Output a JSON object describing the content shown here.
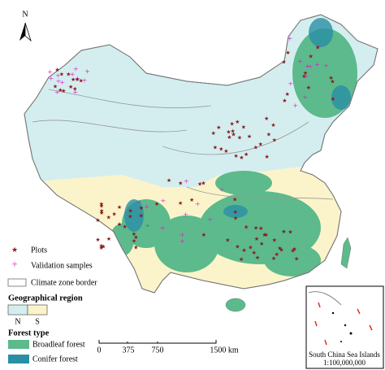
{
  "north_arrow": "N",
  "legend": {
    "plots": "Plots",
    "validation": "Validation samples",
    "climate_border": "Climate zone border",
    "region_title": "Geographical region",
    "region_n": "N",
    "region_s": "S",
    "forest_title": "Forest type",
    "broadleaf": "Broadleaf forest",
    "conifer": "Conifer forest"
  },
  "scale_bar": {
    "labels": [
      "0",
      "375",
      "750",
      "1500 km"
    ]
  },
  "inset": {
    "title": "South China Sea Islands",
    "scale": "1:100,000,000"
  }
}
